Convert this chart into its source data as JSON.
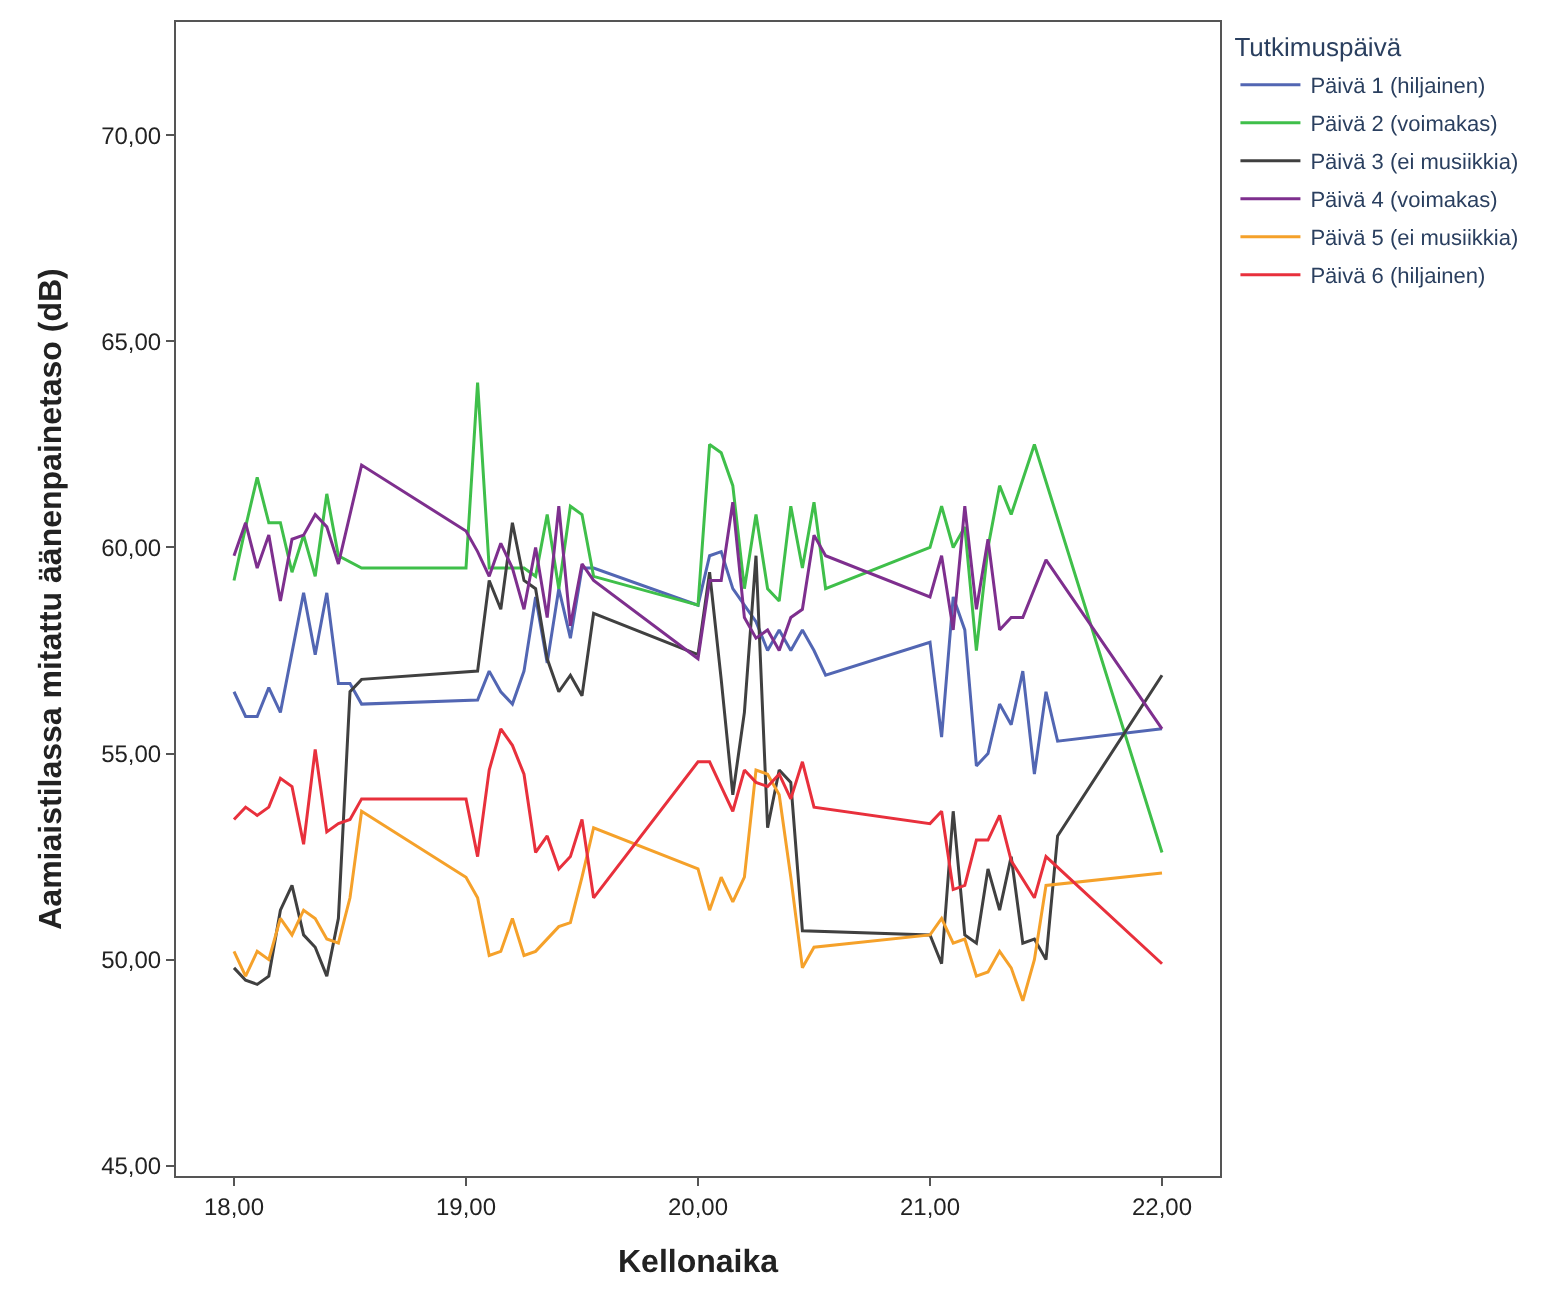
{
  "chart_data": {
    "type": "line",
    "xlabel": "Kellonaika",
    "ylabel": "Aamiaistilassa mitattu äänenpainetaso (dB)",
    "legend_title": "Tutkimuspäivä",
    "legend": "top right",
    "marker": "none",
    "line_style": "solid",
    "xlim": [
      17.75,
      22.25
    ],
    "ylim": [
      44.75,
      72.75
    ],
    "xticks": [
      {
        "value": 18,
        "label": "18,00"
      },
      {
        "value": 19,
        "label": "19,00"
      },
      {
        "value": 20,
        "label": "20,00"
      },
      {
        "value": 21,
        "label": "21,00"
      },
      {
        "value": 22,
        "label": "22,00"
      }
    ],
    "yticks": [
      {
        "value": 45,
        "label": "45,00"
      },
      {
        "value": 50,
        "label": "50,00"
      },
      {
        "value": 55,
        "label": "55,00"
      },
      {
        "value": 60,
        "label": "60,00"
      },
      {
        "value": 65,
        "label": "65,00"
      },
      {
        "value": 70,
        "label": "70,00"
      }
    ],
    "series": [
      {
        "name": "Päivä 1 (hiljainen)",
        "color": "#5266b3",
        "x": [
          18.0,
          18.05,
          18.1,
          18.15,
          18.2,
          18.3,
          18.35,
          18.4,
          18.45,
          18.5,
          18.55,
          19.05,
          19.1,
          19.15,
          19.2,
          19.25,
          19.3,
          19.35,
          19.4,
          19.45,
          19.5,
          19.55,
          20.0,
          20.05,
          20.1,
          20.15,
          20.25,
          20.3,
          20.35,
          20.4,
          20.45,
          20.5,
          20.55,
          21.0,
          21.05,
          21.1,
          21.15,
          21.2,
          21.25,
          21.3,
          21.35,
          21.4,
          21.45,
          21.5,
          21.55,
          22.0
        ],
        "values": [
          56.5,
          55.9,
          55.9,
          56.6,
          56.0,
          58.9,
          57.4,
          58.9,
          56.7,
          56.7,
          56.2,
          56.3,
          57.0,
          56.5,
          56.2,
          57.0,
          58.8,
          57.2,
          59.0,
          57.8,
          59.5,
          59.5,
          58.6,
          59.8,
          59.9,
          59.0,
          58.2,
          57.5,
          58.0,
          57.5,
          58.0,
          57.5,
          56.9,
          57.7,
          55.4,
          58.8,
          58.0,
          54.7,
          55.0,
          56.2,
          55.7,
          57.0,
          54.5,
          56.5,
          55.3,
          55.6
        ]
      },
      {
        "name": "Päivä 2 (voimakas)",
        "color": "#3fbf4a",
        "x": [
          18.0,
          18.05,
          18.1,
          18.15,
          18.2,
          18.25,
          18.3,
          18.35,
          18.4,
          18.45,
          18.55,
          19.0,
          19.05,
          19.1,
          19.15,
          19.2,
          19.25,
          19.3,
          19.35,
          19.4,
          19.45,
          19.5,
          19.55,
          20.0,
          20.05,
          20.1,
          20.15,
          20.2,
          20.25,
          20.3,
          20.35,
          20.4,
          20.45,
          20.5,
          20.55,
          21.0,
          21.05,
          21.1,
          21.15,
          21.2,
          21.25,
          21.3,
          21.35,
          21.45,
          22.0
        ],
        "values": [
          59.2,
          60.5,
          61.7,
          60.6,
          60.6,
          59.4,
          60.3,
          59.3,
          61.3,
          59.8,
          59.5,
          59.5,
          64.0,
          59.5,
          59.5,
          59.5,
          59.5,
          59.3,
          60.8,
          59.0,
          61.0,
          60.8,
          59.3,
          58.6,
          62.5,
          62.3,
          61.5,
          59.0,
          60.8,
          59.0,
          58.7,
          61.0,
          59.5,
          61.1,
          59.0,
          60.0,
          61.0,
          60.0,
          60.5,
          57.5,
          60.0,
          61.5,
          60.8,
          62.5,
          52.6
        ]
      },
      {
        "name": "Päivä 3 (ei musiikkia)",
        "color": "#404040",
        "x": [
          18.0,
          18.05,
          18.1,
          18.15,
          18.2,
          18.25,
          18.3,
          18.35,
          18.4,
          18.45,
          18.5,
          18.55,
          19.05,
          19.1,
          19.15,
          19.2,
          19.25,
          19.3,
          19.35,
          19.4,
          19.45,
          19.5,
          19.55,
          20.0,
          20.05,
          20.1,
          20.15,
          20.2,
          20.25,
          20.3,
          20.35,
          20.4,
          20.45,
          21.0,
          21.05,
          21.1,
          21.15,
          21.2,
          21.25,
          21.3,
          21.35,
          21.4,
          21.45,
          21.5,
          21.55,
          22.0
        ],
        "values": [
          49.8,
          49.5,
          49.4,
          49.6,
          51.2,
          51.8,
          50.6,
          50.3,
          49.6,
          51.0,
          56.5,
          56.8,
          57.0,
          59.2,
          58.5,
          60.6,
          59.2,
          59.0,
          57.3,
          56.5,
          56.9,
          56.4,
          58.4,
          57.4,
          59.4,
          56.8,
          54.0,
          56.0,
          59.8,
          53.2,
          54.6,
          54.3,
          50.7,
          50.6,
          49.9,
          53.6,
          50.6,
          50.4,
          52.2,
          51.2,
          52.5,
          50.4,
          50.5,
          50.0,
          53.0,
          56.9
        ]
      },
      {
        "name": "Päivä 4 (voimakas)",
        "color": "#7e2f8e",
        "x": [
          18.0,
          18.05,
          18.1,
          18.15,
          18.2,
          18.25,
          18.3,
          18.35,
          18.4,
          18.45,
          18.55,
          19.0,
          19.05,
          19.1,
          19.15,
          19.2,
          19.25,
          19.3,
          19.35,
          19.4,
          19.45,
          19.5,
          19.55,
          20.0,
          20.05,
          20.1,
          20.15,
          20.2,
          20.25,
          20.3,
          20.35,
          20.4,
          20.45,
          20.5,
          20.55,
          21.0,
          21.05,
          21.1,
          21.15,
          21.2,
          21.25,
          21.3,
          21.35,
          21.4,
          21.5,
          22.0
        ],
        "values": [
          59.8,
          60.6,
          59.5,
          60.3,
          58.7,
          60.2,
          60.3,
          60.8,
          60.5,
          59.6,
          62.0,
          60.4,
          59.9,
          59.3,
          60.1,
          59.5,
          58.5,
          60.0,
          58.3,
          61.0,
          58.1,
          59.6,
          59.2,
          57.3,
          59.2,
          59.2,
          61.1,
          58.3,
          57.8,
          58.0,
          57.5,
          58.3,
          58.5,
          60.3,
          59.8,
          58.8,
          59.8,
          58.0,
          61.0,
          58.5,
          60.2,
          58.0,
          58.3,
          58.3,
          59.7,
          55.6
        ]
      },
      {
        "name": "Päivä 5 (ei musiikkia)",
        "color": "#f5a12a",
        "x": [
          18.0,
          18.05,
          18.1,
          18.15,
          18.2,
          18.25,
          18.3,
          18.35,
          18.4,
          18.45,
          18.5,
          18.55,
          19.0,
          19.05,
          19.1,
          19.15,
          19.2,
          19.25,
          19.3,
          19.4,
          19.45,
          19.5,
          19.55,
          20.0,
          20.05,
          20.1,
          20.15,
          20.2,
          20.25,
          20.3,
          20.35,
          20.4,
          20.45,
          20.5,
          21.0,
          21.05,
          21.1,
          21.15,
          21.2,
          21.25,
          21.3,
          21.35,
          21.4,
          21.45,
          21.5,
          22.0
        ],
        "values": [
          50.2,
          49.6,
          50.2,
          50.0,
          51.0,
          50.6,
          51.2,
          51.0,
          50.5,
          50.4,
          51.5,
          53.6,
          52.0,
          51.5,
          50.1,
          50.2,
          51.0,
          50.1,
          50.2,
          50.8,
          50.9,
          52.0,
          53.2,
          52.2,
          51.2,
          52.0,
          51.4,
          52.0,
          54.6,
          54.5,
          54.0,
          52.0,
          49.8,
          50.3,
          50.6,
          51.0,
          50.4,
          50.5,
          49.6,
          49.7,
          50.2,
          49.8,
          49.0,
          50.0,
          51.8,
          52.1
        ]
      },
      {
        "name": "Päivä 6 (hiljainen)",
        "color": "#e8303c",
        "x": [
          18.0,
          18.05,
          18.1,
          18.15,
          18.2,
          18.25,
          18.3,
          18.35,
          18.4,
          18.45,
          18.5,
          18.55,
          19.0,
          19.05,
          19.1,
          19.15,
          19.2,
          19.25,
          19.3,
          19.35,
          19.4,
          19.45,
          19.5,
          19.55,
          20.0,
          20.05,
          20.1,
          20.15,
          20.2,
          20.25,
          20.3,
          20.35,
          20.4,
          20.45,
          20.5,
          21.0,
          21.05,
          21.1,
          21.15,
          21.2,
          21.25,
          21.3,
          21.35,
          21.45,
          21.5,
          22.0
        ],
        "values": [
          53.4,
          53.7,
          53.5,
          53.7,
          54.4,
          54.2,
          52.8,
          55.1,
          53.1,
          53.3,
          53.4,
          53.9,
          53.9,
          52.5,
          54.6,
          55.6,
          55.2,
          54.5,
          52.6,
          53.0,
          52.2,
          52.5,
          53.4,
          51.5,
          54.8,
          54.8,
          54.2,
          53.6,
          54.6,
          54.3,
          54.2,
          54.5,
          53.9,
          54.8,
          53.7,
          53.3,
          53.6,
          51.7,
          51.8,
          52.9,
          52.9,
          53.5,
          52.4,
          51.5,
          52.5,
          49.9
        ]
      }
    ]
  }
}
